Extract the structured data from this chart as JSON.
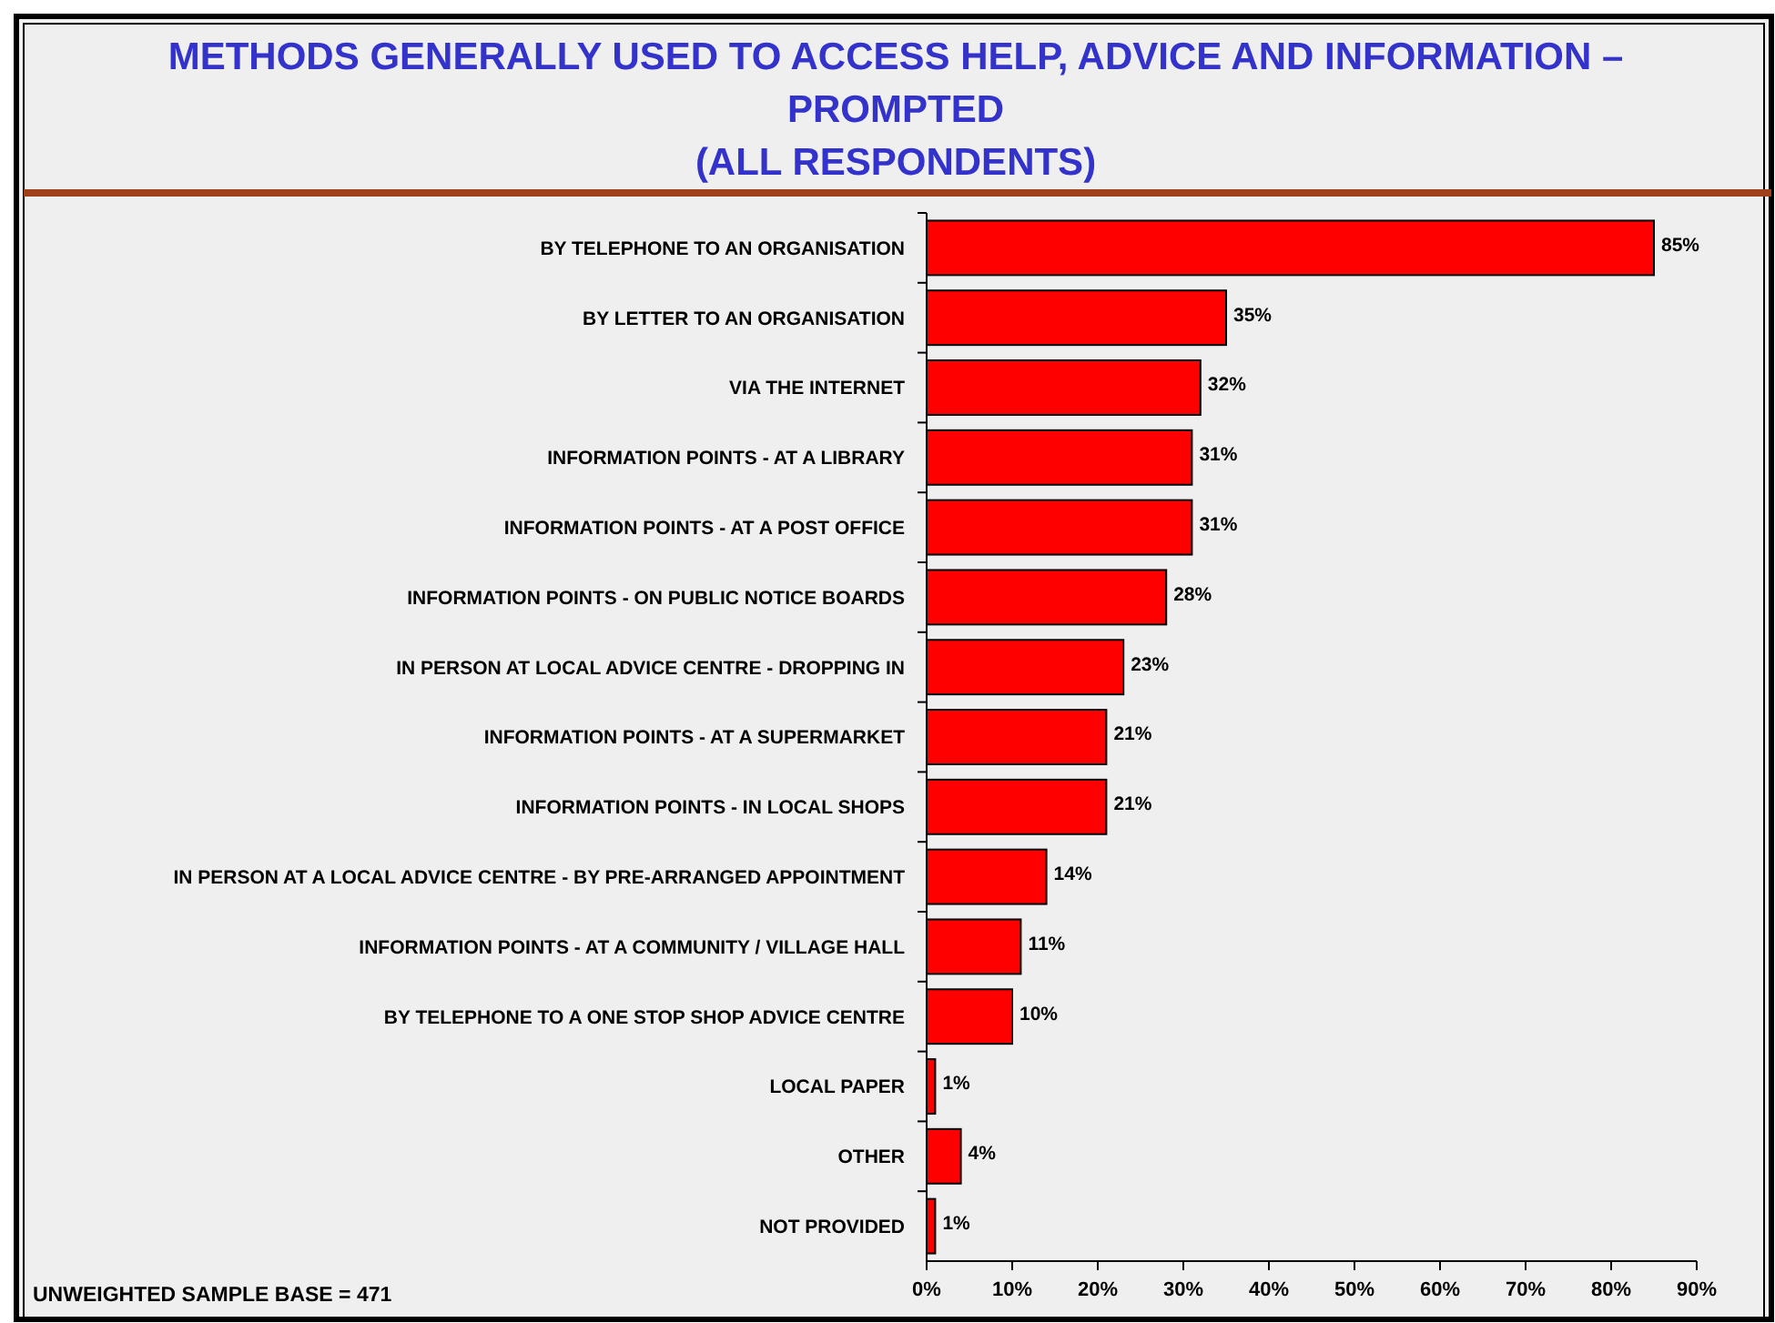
{
  "chart_data": {
    "type": "bar",
    "orientation": "horizontal",
    "title": "METHODS GENERALLY USED TO ACCESS HELP, ADVICE AND INFORMATION – PROMPTED",
    "subtitle": "(ALL RESPONDENTS)",
    "categories": [
      "BY TELEPHONE TO AN ORGANISATION",
      "BY LETTER TO AN ORGANISATION",
      "VIA THE INTERNET",
      "INFORMATION POINTS - AT A LIBRARY",
      "INFORMATION POINTS - AT A POST OFFICE",
      "INFORMATION POINTS - ON PUBLIC NOTICE BOARDS",
      "IN PERSON AT LOCAL ADVICE CENTRE - DROPPING IN",
      "INFORMATION POINTS - AT A SUPERMARKET",
      "INFORMATION POINTS - IN LOCAL SHOPS",
      "IN PERSON AT A LOCAL ADVICE CENTRE - BY PRE-ARRANGED APPOINTMENT",
      "INFORMATION POINTS - AT A COMMUNITY / VILLAGE HALL",
      "BY TELEPHONE TO A ONE STOP SHOP ADVICE CENTRE",
      "LOCAL PAPER",
      "OTHER",
      "NOT PROVIDED"
    ],
    "values": [
      85,
      35,
      32,
      31,
      31,
      28,
      23,
      21,
      21,
      14,
      11,
      10,
      1,
      4,
      1
    ],
    "color": "#ff0000",
    "value_labels": [
      "85%",
      "35%",
      "32%",
      "31%",
      "31%",
      "28%",
      "23%",
      "21%",
      "21%",
      "14%",
      "11%",
      "10%",
      "1%",
      "4%",
      "1%"
    ],
    "xlim": [
      0,
      90
    ],
    "xticks": [
      {
        "value": 0,
        "label": "0%"
      },
      {
        "value": 10,
        "label": "10%"
      },
      {
        "value": 20,
        "label": "20%"
      },
      {
        "value": 30,
        "label": "30%"
      },
      {
        "value": 40,
        "label": "40%"
      },
      {
        "value": 50,
        "label": "50%"
      },
      {
        "value": 60,
        "label": "60%"
      },
      {
        "value": 70,
        "label": "70%"
      },
      {
        "value": 80,
        "label": "80%"
      },
      {
        "value": 90,
        "label": "90%"
      }
    ],
    "grid": false,
    "annotations": [
      "UNWEIGHTED SAMPLE BASE = 471"
    ]
  }
}
